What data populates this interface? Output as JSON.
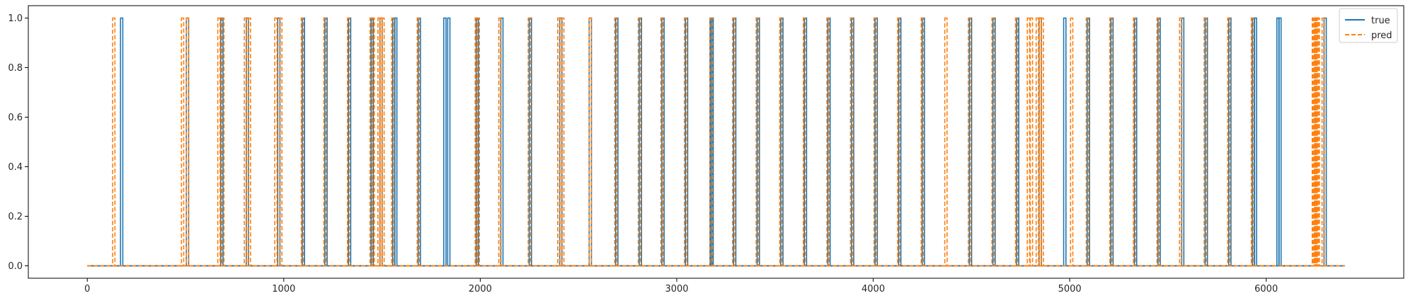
{
  "chart_data": {
    "type": "line",
    "title": "",
    "xlabel": "",
    "ylabel": "",
    "xlim": [
      -300,
      6700
    ],
    "ylim": [
      -0.05,
      1.05
    ],
    "x_ticks": [
      0,
      1000,
      2000,
      3000,
      4000,
      5000,
      6000
    ],
    "x_tick_labels": [
      "0",
      "1000",
      "2000",
      "3000",
      "4000",
      "5000",
      "6000"
    ],
    "y_ticks": [
      0.0,
      0.2,
      0.4,
      0.6,
      0.8,
      1.0
    ],
    "y_tick_labels": [
      "0.0",
      "0.2",
      "0.4",
      "0.6",
      "0.8",
      "1.0"
    ],
    "grid": false,
    "legend_position": "top-right",
    "x_start": 0,
    "x_end": 6400,
    "series": [
      {
        "name": "true",
        "color": "#1f77b4",
        "style": "solid",
        "spike_x": [
          175,
          510,
          685,
          815,
          975,
          1100,
          1215,
          1335,
          1450,
          1495,
          1560,
          1570,
          1690,
          1820,
          1840,
          1985,
          2110,
          2255,
          2410,
          2560,
          2695,
          2815,
          2930,
          3050,
          3175,
          3180,
          3295,
          3415,
          3535,
          3655,
          3775,
          3895,
          4015,
          4135,
          4255,
          4495,
          4615,
          4735,
          4850,
          4975,
          5095,
          5215,
          5335,
          5455,
          5575,
          5695,
          5815,
          5935,
          5945,
          6060,
          6070,
          6300
        ]
      },
      {
        "name": "pred",
        "color": "#ff7f0e",
        "style": "dashed",
        "spike_x": [
          135,
          485,
          510,
          670,
          690,
          805,
          825,
          960,
          985,
          1095,
          1210,
          1330,
          1445,
          1455,
          1485,
          1495,
          1505,
          1555,
          1685,
          1980,
          1990,
          2100,
          2250,
          2400,
          2420,
          2560,
          2690,
          2810,
          2925,
          3045,
          3175,
          3290,
          3410,
          3530,
          3650,
          3770,
          3890,
          4010,
          4130,
          4250,
          4370,
          4490,
          4610,
          4730,
          4790,
          4805,
          4835,
          4850,
          4860,
          5010,
          5090,
          5210,
          5330,
          5450,
          5565,
          5690,
          5810,
          5930,
          6240,
          6245,
          6250,
          6255,
          6260,
          6265,
          6290
        ]
      }
    ]
  }
}
